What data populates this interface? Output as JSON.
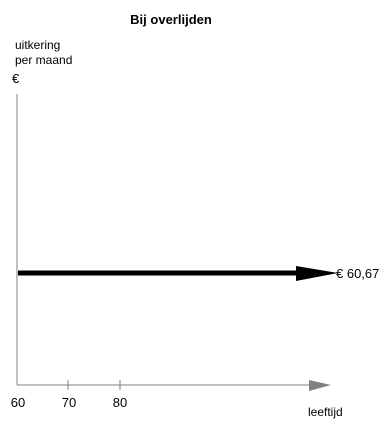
{
  "chart_data": {
    "type": "line",
    "title": "Bij overlijden",
    "ylabel": [
      "uitkering",
      "per maand"
    ],
    "yunit": "€",
    "xlabel": "leeftijd",
    "x_ticks": [
      "60",
      "70",
      "80"
    ],
    "series": [
      {
        "x_start": 60,
        "value": 60.67,
        "label": "€ 60,67"
      }
    ],
    "grid": false,
    "colors": {
      "series": "#000000",
      "axis": "#808080",
      "arrowhead": "#808080"
    }
  }
}
